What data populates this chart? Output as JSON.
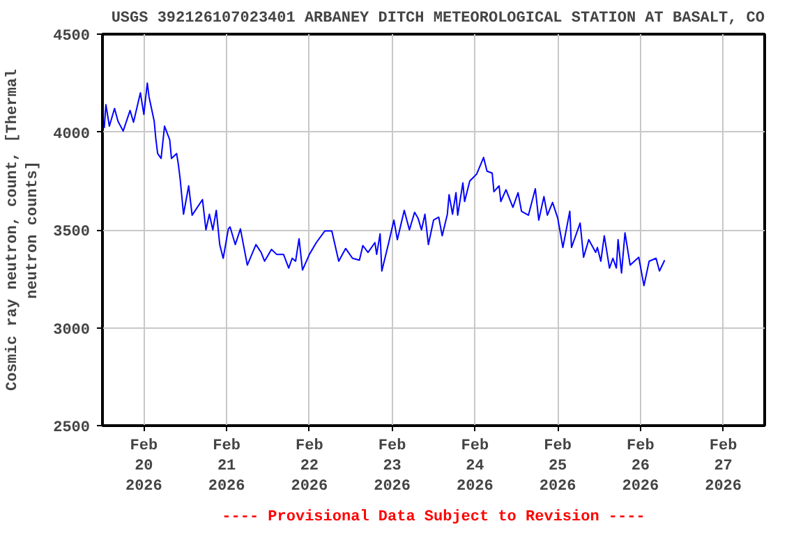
{
  "chart_data": {
    "type": "line",
    "title": "USGS 392126107023401 ARBANEY DITCH METEOROLOGICAL STATION AT BASALT, CO",
    "ylabel": "Cosmic ray neutron, count, [Thermal\nneutron counts]",
    "annotations": [
      "---- Provisional Data Subject to Revision ----"
    ],
    "x": [
      "2026-02-19T12:30",
      "2026-02-19T13:00",
      "2026-02-19T14:00",
      "2026-02-19T15:30",
      "2026-02-19T16:30",
      "2026-02-19T18:00",
      "2026-02-19T20:00",
      "2026-02-19T21:00",
      "2026-02-19T23:00",
      "2026-02-20T00:00",
      "2026-02-20T01:00",
      "2026-02-20T01:30",
      "2026-02-20T03:00",
      "2026-02-20T03:30",
      "2026-02-20T04:00",
      "2026-02-20T05:00",
      "2026-02-20T06:00",
      "2026-02-20T07:30",
      "2026-02-20T08:00",
      "2026-02-20T09:30",
      "2026-02-20T10:00",
      "2026-02-20T10:30",
      "2026-02-20T11:30",
      "2026-02-20T13:00",
      "2026-02-20T14:00",
      "2026-02-20T17:00",
      "2026-02-20T18:00",
      "2026-02-20T19:00",
      "2026-02-20T20:00",
      "2026-02-20T21:00",
      "2026-02-20T22:00",
      "2026-02-20T23:00",
      "2026-02-21T00:30",
      "2026-02-21T01:00",
      "2026-02-21T02:30",
      "2026-02-21T04:00",
      "2026-02-21T06:00",
      "2026-02-21T08:30",
      "2026-02-21T10:00",
      "2026-02-21T11:00",
      "2026-02-21T13:00",
      "2026-02-21T14:30",
      "2026-02-21T16:30",
      "2026-02-21T18:00",
      "2026-02-21T19:00",
      "2026-02-21T20:00",
      "2026-02-21T21:00",
      "2026-02-21T22:00",
      "2026-02-22T00:00",
      "2026-02-22T02:00",
      "2026-02-22T04:30",
      "2026-02-22T06:30",
      "2026-02-22T08:30",
      "2026-02-22T10:30",
      "2026-02-22T12:30",
      "2026-02-22T14:30",
      "2026-02-22T15:30",
      "2026-02-22T17:00",
      "2026-02-22T19:00",
      "2026-02-22T19:30",
      "2026-02-22T20:30",
      "2026-02-22T21:00",
      "2026-02-22T23:00",
      "2026-02-23T00:30",
      "2026-02-23T01:30",
      "2026-02-23T03:30",
      "2026-02-23T05:00",
      "2026-02-23T06:30",
      "2026-02-23T07:30",
      "2026-02-23T08:30",
      "2026-02-23T09:30",
      "2026-02-23T10:30",
      "2026-02-23T12:00",
      "2026-02-23T13:30",
      "2026-02-23T14:30",
      "2026-02-23T16:00",
      "2026-02-23T16:30",
      "2026-02-23T17:30",
      "2026-02-23T18:30",
      "2026-02-23T19:00",
      "2026-02-23T20:30",
      "2026-02-23T21:00",
      "2026-02-23T22:30",
      "2026-02-24T00:30",
      "2026-02-24T02:30",
      "2026-02-24T03:30",
      "2026-02-24T05:00",
      "2026-02-24T05:30",
      "2026-02-24T07:00",
      "2026-02-24T07:30",
      "2026-02-24T09:00",
      "2026-02-24T11:00",
      "2026-02-24T12:30",
      "2026-02-24T13:30",
      "2026-02-24T15:30",
      "2026-02-24T17:30",
      "2026-02-24T18:30",
      "2026-02-24T20:00",
      "2026-02-24T21:00",
      "2026-02-24T22:30",
      "2026-02-25T00:00",
      "2026-02-25T01:30",
      "2026-02-25T03:30",
      "2026-02-25T04:00",
      "2026-02-25T06:30",
      "2026-02-25T07:30",
      "2026-02-25T09:00",
      "2026-02-25T11:00",
      "2026-02-25T11:30",
      "2026-02-25T12:30",
      "2026-02-25T13:30",
      "2026-02-25T15:00",
      "2026-02-25T16:00",
      "2026-02-25T17:00",
      "2026-02-25T17:30",
      "2026-02-25T18:30",
      "2026-02-25T19:30",
      "2026-02-25T20:30",
      "2026-02-25T21:00",
      "2026-02-25T23:30",
      "2026-02-26T01:00",
      "2026-02-26T02:30",
      "2026-02-26T04:30",
      "2026-02-26T05:30",
      "2026-02-26T07:00"
    ],
    "series": [
      {
        "color": "#0000ff",
        "values": [
          4020,
          4140,
          4030,
          4120,
          4055,
          4005,
          4110,
          4050,
          4200,
          4090,
          4250,
          4180,
          4055,
          3960,
          3890,
          3865,
          4030,
          3960,
          3865,
          3890,
          3835,
          3765,
          3580,
          3725,
          3575,
          3655,
          3500,
          3580,
          3500,
          3600,
          3425,
          3355,
          3505,
          3515,
          3425,
          3505,
          3320,
          3425,
          3385,
          3340,
          3400,
          3375,
          3375,
          3305,
          3355,
          3340,
          3455,
          3295,
          3375,
          3435,
          3495,
          3495,
          3340,
          3405,
          3355,
          3345,
          3420,
          3385,
          3435,
          3375,
          3480,
          3290,
          3435,
          3550,
          3450,
          3600,
          3500,
          3590,
          3560,
          3500,
          3580,
          3425,
          3550,
          3565,
          3470,
          3580,
          3680,
          3580,
          3690,
          3575,
          3740,
          3645,
          3750,
          3785,
          3870,
          3800,
          3790,
          3695,
          3725,
          3645,
          3705,
          3615,
          3690,
          3595,
          3575,
          3710,
          3550,
          3670,
          3575,
          3640,
          3560,
          3410,
          3595,
          3410,
          3535,
          3360,
          3450,
          3385,
          3410,
          3340,
          3470,
          3305,
          3355,
          3305,
          3450,
          3280,
          3485,
          3375,
          3320,
          3360,
          3215,
          3340,
          3355,
          3290,
          3345
        ]
      }
    ],
    "xlim": [
      "2026-02-19T12:00",
      "2026-02-27T12:00"
    ],
    "xticks": [
      {
        "value": "2026-02-20",
        "label": "Feb\n20\n2026"
      },
      {
        "value": "2026-02-21",
        "label": "Feb\n21\n2026"
      },
      {
        "value": "2026-02-22",
        "label": "Feb\n22\n2026"
      },
      {
        "value": "2026-02-23",
        "label": "Feb\n23\n2026"
      },
      {
        "value": "2026-02-24",
        "label": "Feb\n24\n2026"
      },
      {
        "value": "2026-02-25",
        "label": "Feb\n25\n2026"
      },
      {
        "value": "2026-02-26",
        "label": "Feb\n26\n2026"
      },
      {
        "value": "2026-02-27",
        "label": "Feb\n27\n2026"
      }
    ],
    "ylim": [
      2500,
      4500
    ],
    "yticks": [
      2500,
      3000,
      3500,
      4000,
      4500
    ],
    "grid": true
  }
}
